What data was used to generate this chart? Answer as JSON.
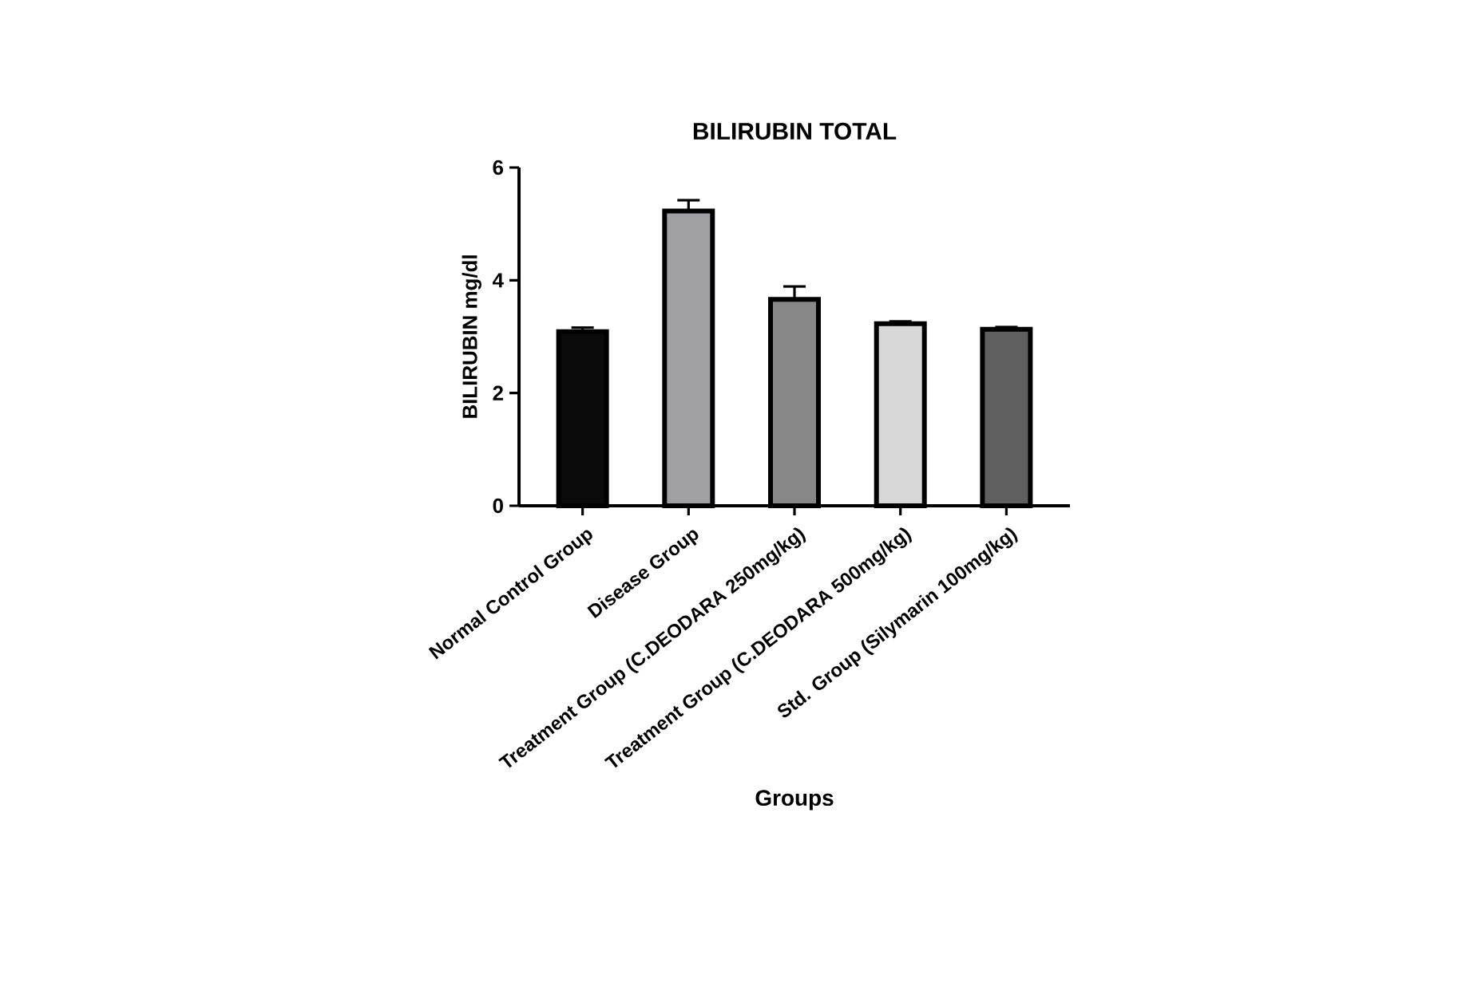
{
  "chart_data": {
    "type": "bar",
    "title": "BILIRUBIN TOTAL",
    "xlabel": "Groups",
    "ylabel": "BILIRUBIN mg/dl",
    "categories": [
      "Normal Control Group",
      "Disease Group",
      "Treatment Group (C.DEODARA 250mg/kg)",
      "Treatment Group (C.DEODARA 500mg/kg)",
      "Std. Group (Silymarin 100mg/kg)"
    ],
    "values": [
      3.09,
      5.23,
      3.66,
      3.23,
      3.13
    ],
    "errors": [
      0.07,
      0.19,
      0.23,
      0.04,
      0.04
    ],
    "colors": [
      "#0a0a0a",
      "#a0a0a4",
      "#878787",
      "#d8d8d8",
      "#606060"
    ],
    "ylim": [
      0,
      6
    ],
    "yticks": [
      0,
      2,
      4,
      6
    ]
  }
}
